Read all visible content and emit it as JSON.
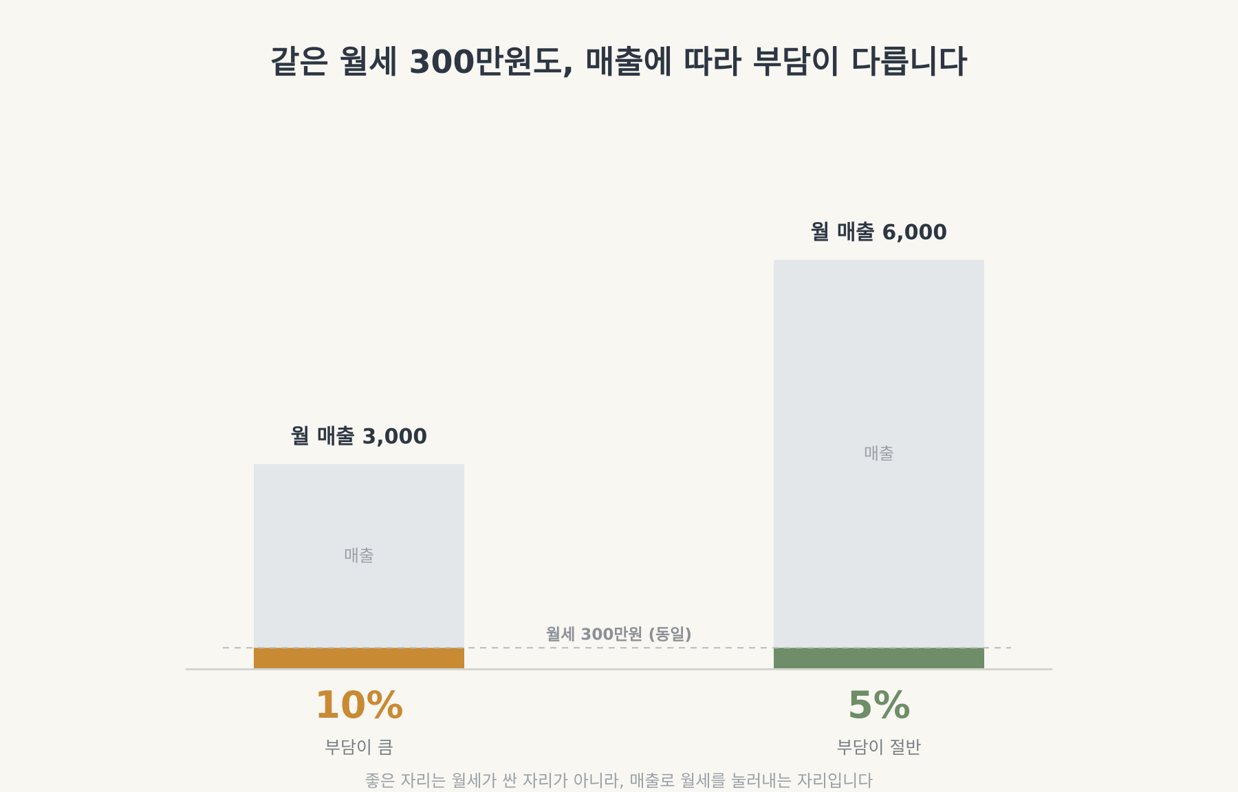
{
  "chart_data": {
    "type": "bar",
    "title": "같은 월세 300만원도, 매출에 따라 부담이 다릅니다",
    "categories": [
      "월 매출 3,000",
      "월 매출 6,000"
    ],
    "series": [
      {
        "values": [
          3000,
          6000
        ]
      },
      {
        "values": [
          300,
          300
        ]
      }
    ],
    "bar_inner_label": "매출",
    "rent_line_label": "월세 300만원 (동일)",
    "rent_value": 300,
    "burden_percent": [
      "10%",
      "5%"
    ],
    "burden_desc": [
      "부담이 큼",
      "부담이 절반"
    ],
    "footnote": "좋은 자리는 월세가 싼 자리가 아니라, 매출로 월세를 눌러내는 자리입니다",
    "ylim": [
      0,
      6000
    ],
    "grid": false,
    "legend": "none",
    "colors": {
      "revenue": "#e4e7ea",
      "rent_low_revenue": "#c98a34",
      "rent_high_revenue": "#6e8d68",
      "axis": "#d4d4d0",
      "rent_line": "#b8bbbf"
    }
  }
}
